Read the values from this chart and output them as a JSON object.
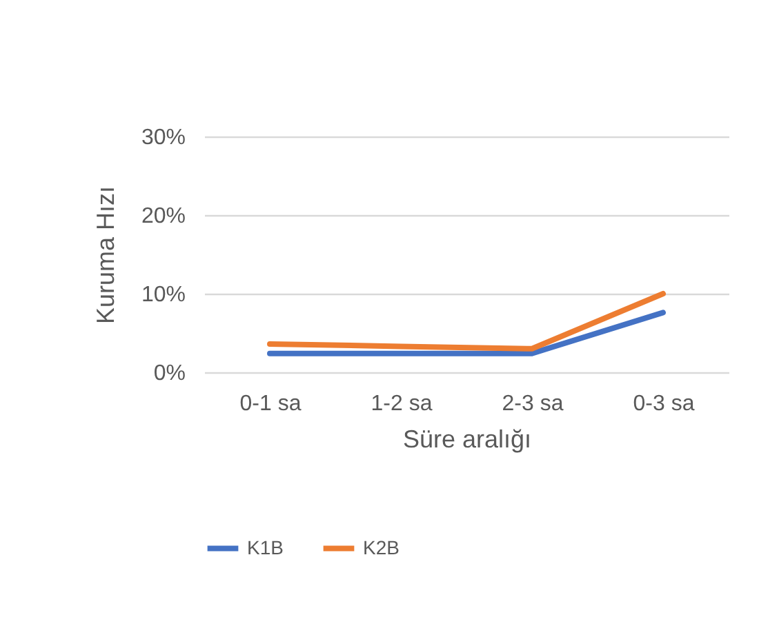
{
  "chart_data": {
    "type": "line",
    "xlabel": "Süre aralığı",
    "ylabel": "Kuruma Hızı",
    "categories": [
      "0-1 sa",
      "1-2 sa",
      "2-3 sa",
      "0-3 sa"
    ],
    "series": [
      {
        "name": "K1B",
        "color": "#4472c4",
        "values": [
          2.4,
          2.4,
          2.4,
          7.6
        ]
      },
      {
        "name": "K2B",
        "color": "#ed7d31",
        "values": [
          3.6,
          3.3,
          3.0,
          10.0
        ]
      }
    ],
    "ylim": [
      0,
      30
    ],
    "yticks": [
      {
        "value": 0,
        "label": "0%"
      },
      {
        "value": 10,
        "label": "10%"
      },
      {
        "value": 20,
        "label": "20%"
      },
      {
        "value": 30,
        "label": "30%"
      }
    ],
    "grid": "y",
    "legend": "bottom",
    "marker": "none",
    "line_style": "solid"
  }
}
